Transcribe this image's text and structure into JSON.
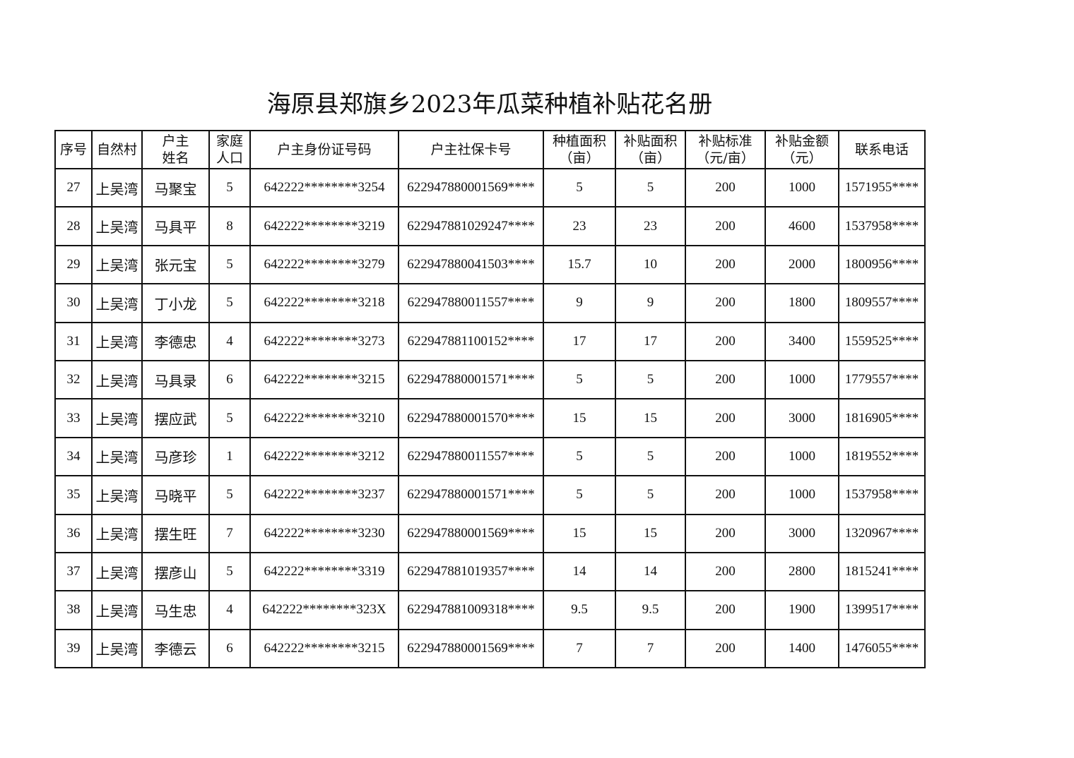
{
  "title": "海原县郑旗乡2023年瓜菜种植补贴花名册",
  "headers": [
    {
      "l1": "序号",
      "l2": ""
    },
    {
      "l1": "自然村",
      "l2": ""
    },
    {
      "l1": "户主",
      "l2": "姓名"
    },
    {
      "l1": "家庭",
      "l2": "人口"
    },
    {
      "l1": "户主身份证号码",
      "l2": ""
    },
    {
      "l1": "户主社保卡号",
      "l2": ""
    },
    {
      "l1": "种植面积",
      "l2": "（亩）"
    },
    {
      "l1": "补贴面积",
      "l2": "（亩）"
    },
    {
      "l1": "补贴标准",
      "l2": "（元/亩）"
    },
    {
      "l1": "补贴金额",
      "l2": "（元）"
    },
    {
      "l1": "联系电话",
      "l2": ""
    }
  ],
  "rows": [
    [
      "27",
      "上吴湾",
      "马聚宝",
      "5",
      "642222********3254",
      "622947880001569****",
      "5",
      "5",
      "200",
      "1000",
      "1571955****"
    ],
    [
      "28",
      "上吴湾",
      "马具平",
      "8",
      "642222********3219",
      "622947881029247****",
      "23",
      "23",
      "200",
      "4600",
      "1537958****"
    ],
    [
      "29",
      "上吴湾",
      "张元宝",
      "5",
      "642222********3279",
      "622947880041503****",
      "15.7",
      "10",
      "200",
      "2000",
      "1800956****"
    ],
    [
      "30",
      "上吴湾",
      "丁小龙",
      "5",
      "642222********3218",
      "622947880011557****",
      "9",
      "9",
      "200",
      "1800",
      "1809557****"
    ],
    [
      "31",
      "上吴湾",
      "李德忠",
      "4",
      "642222********3273",
      "622947881100152****",
      "17",
      "17",
      "200",
      "3400",
      "1559525****"
    ],
    [
      "32",
      "上吴湾",
      "马具录",
      "6",
      "642222********3215",
      "622947880001571****",
      "5",
      "5",
      "200",
      "1000",
      "1779557****"
    ],
    [
      "33",
      "上吴湾",
      "摆应武",
      "5",
      "642222********3210",
      "622947880001570****",
      "15",
      "15",
      "200",
      "3000",
      "1816905****"
    ],
    [
      "34",
      "上吴湾",
      "马彦珍",
      "1",
      "642222********3212",
      "622947880011557****",
      "5",
      "5",
      "200",
      "1000",
      "1819552****"
    ],
    [
      "35",
      "上吴湾",
      "马晓平",
      "5",
      "642222********3237",
      "622947880001571****",
      "5",
      "5",
      "200",
      "1000",
      "1537958****"
    ],
    [
      "36",
      "上吴湾",
      "摆生旺",
      "7",
      "642222********3230",
      "622947880001569****",
      "15",
      "15",
      "200",
      "3000",
      "1320967****"
    ],
    [
      "37",
      "上吴湾",
      "摆彦山",
      "5",
      "642222********3319",
      "622947881019357****",
      "14",
      "14",
      "200",
      "2800",
      "1815241****"
    ],
    [
      "38",
      "上吴湾",
      "马生忠",
      "4",
      "642222********323X",
      "622947881009318****",
      "9.5",
      "9.5",
      "200",
      "1900",
      "1399517****"
    ],
    [
      "39",
      "上吴湾",
      "李德云",
      "6",
      "642222********3215",
      "622947880001569****",
      "7",
      "7",
      "200",
      "1400",
      "1476055****"
    ]
  ]
}
